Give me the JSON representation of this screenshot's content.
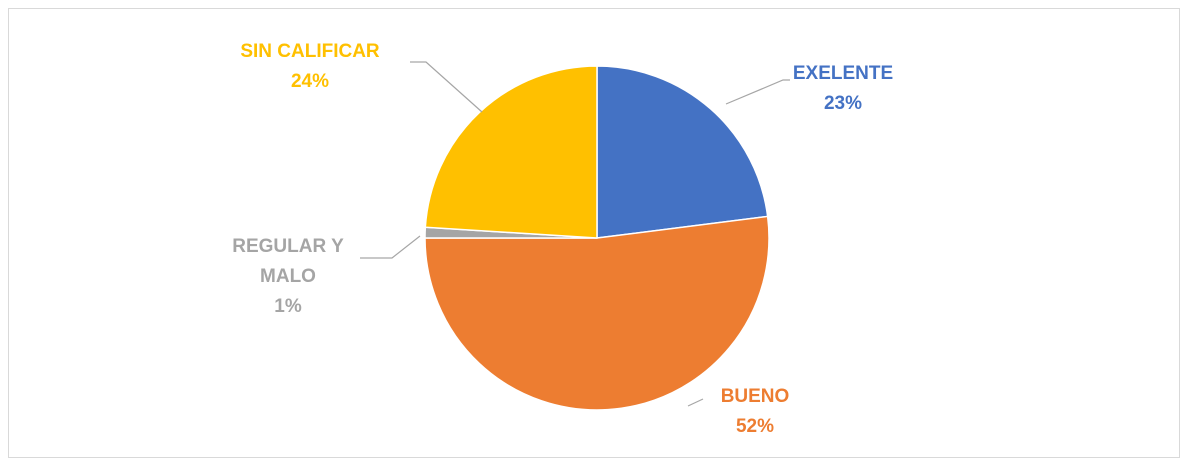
{
  "chart_data": {
    "type": "pie",
    "categories": [
      "EXELENTE",
      "BUENO",
      "REGULAR Y MALO",
      "SIN CALIFICAR"
    ],
    "values": [
      23,
      52,
      1,
      24
    ],
    "value_labels": [
      "23%",
      "52%",
      "1%",
      "24%"
    ],
    "colors": [
      "#4472c4",
      "#ed7d31",
      "#a5a5a5",
      "#ffc000"
    ]
  }
}
